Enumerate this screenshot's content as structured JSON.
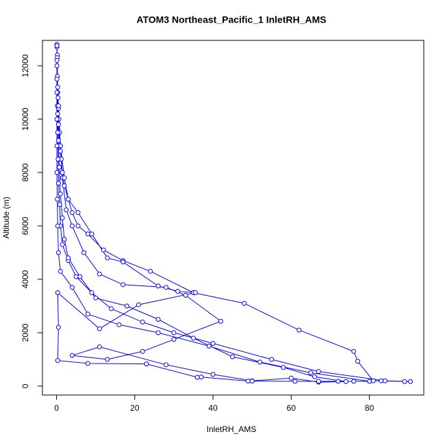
{
  "chart_data": {
    "type": "line",
    "title": "ATOM3 Northeast_Pacific_1 InletRH_AMS",
    "x_label": "InletRH_AMS",
    "y_label": "Altitude (m)",
    "color": "#0000ff",
    "xlim": [
      -3.6,
      93.9
    ],
    "ylim": [
      -333,
      12949
    ],
    "xticks": [
      0,
      20,
      40,
      60,
      80
    ],
    "yticks": [
      0,
      2000,
      4000,
      6000,
      8000,
      10000,
      12000
    ],
    "x": [
      0.1,
      0.1,
      0.2,
      0.1,
      0.2,
      0.3,
      0.4,
      0.5,
      0.6,
      0.8,
      1,
      1.2,
      1.5,
      2,
      3,
      4,
      5.5,
      8,
      12,
      17,
      24,
      35,
      48,
      62,
      76,
      77,
      81,
      83,
      89,
      90.5,
      84,
      67,
      55,
      40,
      30,
      22,
      14,
      9,
      5,
      3,
      1.5,
      1,
      0.8,
      0.5,
      0.4,
      0.3,
      0.2,
      0.1,
      0.2,
      0.3,
      0.5,
      1,
      1.5,
      2.5,
      4,
      7,
      11,
      17,
      28,
      33,
      42,
      30,
      22,
      13,
      4,
      11,
      28,
      40,
      50,
      60,
      67,
      74,
      66,
      58,
      45,
      35,
      26,
      18,
      10,
      6,
      3,
      2,
      1.5,
      1,
      0.7,
      0.5,
      0.3,
      0.5,
      1,
      2,
      3,
      5.5,
      9,
      13,
      17,
      26,
      31,
      35.5,
      21,
      11,
      0.3,
      0.5,
      0.3,
      8,
      23,
      36,
      37,
      49,
      50,
      61,
      67,
      72,
      76,
      80,
      65,
      52,
      39,
      26,
      16,
      8,
      4,
      1,
      0.5,
      0.3,
      0.2,
      0.1,
      0.1,
      0.1,
      0.1,
      0.1,
      0.1
    ],
    "values": [
      12800,
      12700,
      12400,
      12000,
      11600,
      11200,
      10800,
      10400,
      10000,
      9500,
      9000,
      8500,
      8000,
      7500,
      7000,
      6500,
      6000,
      5700,
      5100,
      4700,
      4300,
      3500,
      3100,
      2100,
      1300,
      930,
      200,
      200,
      170,
      170,
      200,
      550,
      1000,
      1600,
      2000,
      2400,
      2900,
      3500,
      4100,
      4700,
      5300,
      6000,
      6800,
      7600,
      8500,
      9500,
      10500,
      11500,
      12300,
      11000,
      9800,
      8800,
      7800,
      6600,
      6000,
      5000,
      4200,
      3800,
      3700,
      3400,
      2430,
      1750,
      1300,
      1000,
      1150,
      1470,
      800,
      440,
      200,
      300,
      150,
      170,
      350,
      700,
      1100,
      1800,
      2500,
      3000,
      3300,
      4100,
      4800,
      5500,
      6300,
      7200,
      8200,
      9200,
      10200,
      10500,
      9000,
      7800,
      7000,
      6500,
      5700,
      4800,
      4650,
      3750,
      3550,
      3500,
      3050,
      2150,
      3500,
      2200,
      960,
      850,
      830,
      330,
      340,
      190,
      190,
      180,
      180,
      180,
      180,
      180,
      500,
      900,
      1500,
      2000,
      2300,
      2700,
      3700,
      4300,
      5000,
      6000,
      7000,
      8000,
      9000,
      10000,
      11000,
      12200,
      12750
    ]
  }
}
